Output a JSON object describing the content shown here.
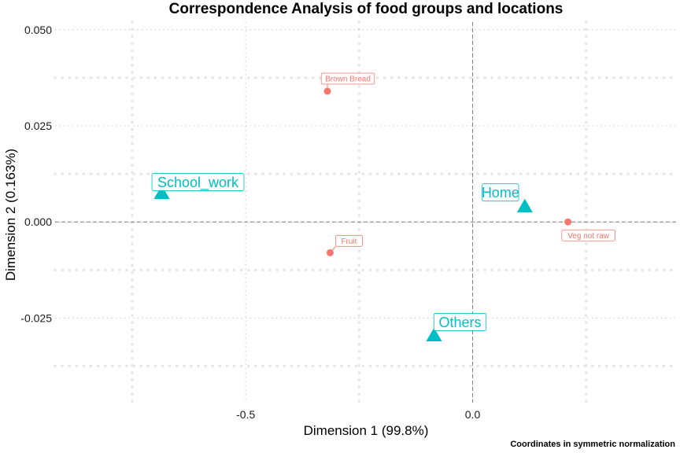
{
  "chart_data": {
    "type": "scatter",
    "title": "Correspondence Analysis of food groups and locations",
    "caption": "Coordinates in symmetric normalization",
    "xlabel": "Dimension 1 (99.8%)",
    "ylabel": "Dimension 2 (0.163%)",
    "xlim": [
      -0.92,
      0.45
    ],
    "ylim": [
      -0.047,
      0.052
    ],
    "x_ticks": [
      {
        "value": -0.5,
        "label": "-0.5"
      },
      {
        "value": 0.0,
        "label": "0.0"
      }
    ],
    "y_ticks": [
      {
        "value": 0.05,
        "label": "0.050"
      },
      {
        "value": 0.025,
        "label": "0.025"
      },
      {
        "value": 0.0,
        "label": "0.000"
      },
      {
        "value": -0.025,
        "label": "-0.025"
      }
    ],
    "x_minor_ticks": [
      -0.75,
      -0.25,
      0.25
    ],
    "y_minor_ticks": [
      0.0375,
      0.0125,
      -0.0125,
      -0.0375
    ],
    "grid": true,
    "series": [
      {
        "color": "#F8766D",
        "shape": "circle",
        "points": [
          {
            "label": "Brown Bread",
            "x": -0.32,
            "y": 0.034
          },
          {
            "label": "Fruit",
            "x": -0.314,
            "y": -0.008
          },
          {
            "label": "Veg not raw",
            "x": 0.21,
            "y": 0.0
          }
        ]
      },
      {
        "color": "#00BFC4",
        "shape": "triangle",
        "points": [
          {
            "label": "School_work",
            "x": -0.685,
            "y": 0.0075
          },
          {
            "label": "Home",
            "x": 0.115,
            "y": 0.004
          },
          {
            "label": "Others",
            "x": -0.085,
            "y": -0.0295
          }
        ]
      }
    ]
  }
}
